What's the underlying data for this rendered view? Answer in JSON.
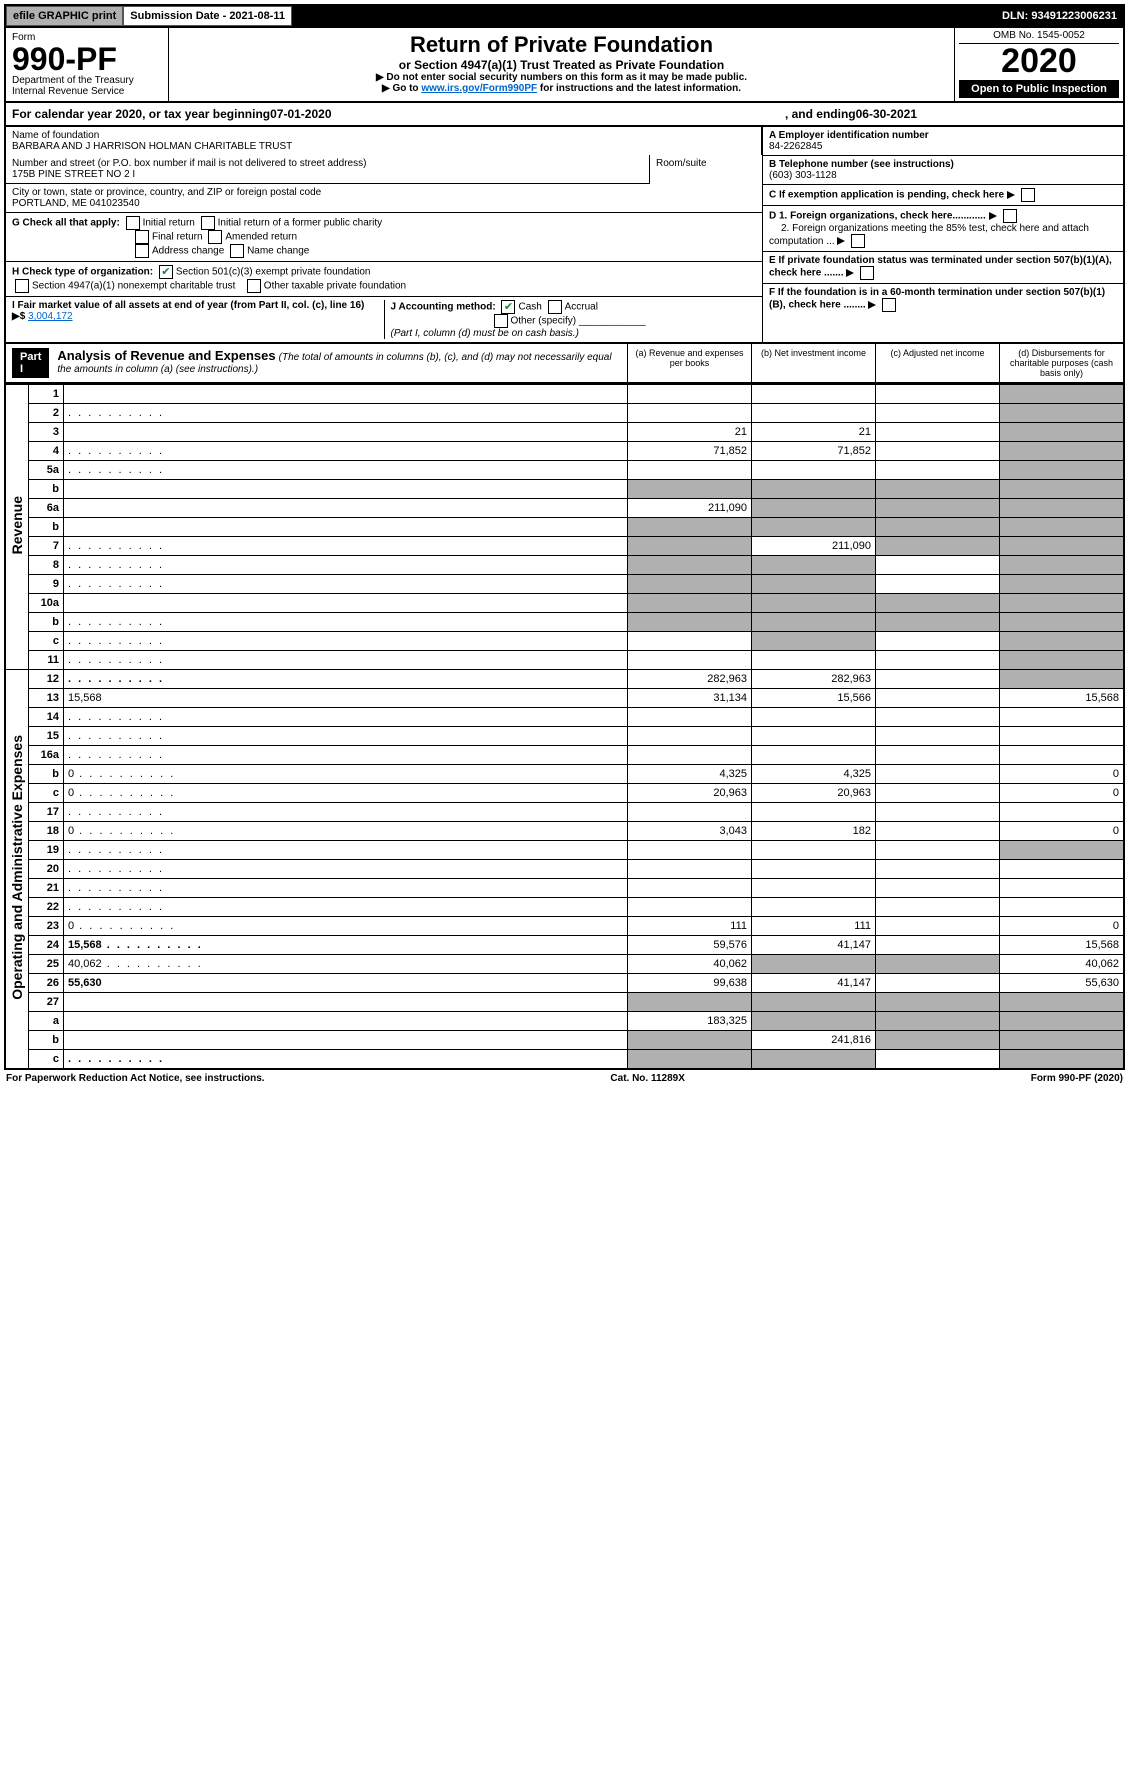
{
  "topbar": {
    "efile": "efile GRAPHIC print",
    "submission": "Submission Date - 2021-08-11",
    "dln": "DLN: 93491223006231"
  },
  "header": {
    "form_label": "Form",
    "form_number": "990-PF",
    "dept": "Department of the Treasury",
    "irs": "Internal Revenue Service",
    "title": "Return of Private Foundation",
    "subtitle": "or Section 4947(a)(1) Trust Treated as Private Foundation",
    "instr1": "▶ Do not enter social security numbers on this form as it may be made public.",
    "instr2_pre": "▶ Go to ",
    "instr2_link": "www.irs.gov/Form990PF",
    "instr2_post": " for instructions and the latest information.",
    "omb": "OMB No. 1545-0052",
    "year": "2020",
    "open": "Open to Public Inspection"
  },
  "calyear": {
    "pre": "For calendar year 2020, or tax year beginning ",
    "begin": "07-01-2020",
    "mid": " , and ending ",
    "end": "06-30-2021"
  },
  "info": {
    "name_lbl": "Name of foundation",
    "name": "BARBARA AND J HARRISON HOLMAN CHARITABLE TRUST",
    "street_lbl": "Number and street (or P.O. box number if mail is not delivered to street address)",
    "street": "175B PINE STREET NO 2 I",
    "room_lbl": "Room/suite",
    "city_lbl": "City or town, state or province, country, and ZIP or foreign postal code",
    "city": "PORTLAND, ME  041023540",
    "A_lbl": "A Employer identification number",
    "A_val": "84-2262845",
    "B_lbl": "B Telephone number (see instructions)",
    "B_val": "(603) 303-1128",
    "C_lbl": "C If exemption application is pending, check here",
    "D1_lbl": "D 1. Foreign organizations, check here............",
    "D2_lbl": "2. Foreign organizations meeting the 85% test, check here and attach computation ...",
    "E_lbl": "E If private foundation status was terminated under section 507(b)(1)(A), check here .......",
    "F_lbl": "F If the foundation is in a 60-month termination under section 507(b)(1)(B), check here ........",
    "G_lbl": "G Check all that apply:",
    "G_opts": [
      "Initial return",
      "Initial return of a former public charity",
      "Final return",
      "Amended return",
      "Address change",
      "Name change"
    ],
    "H_lbl": "H Check type of organization:",
    "H_opt1": "Section 501(c)(3) exempt private foundation",
    "H_opt2": "Section 4947(a)(1) nonexempt charitable trust",
    "H_opt3": "Other taxable private foundation",
    "I_lbl": "I Fair market value of all assets at end of year (from Part II, col. (c), line 16) ▶$ ",
    "I_val": "3,004,172",
    "J_lbl": "J Accounting method:",
    "J_cash": "Cash",
    "J_acc": "Accrual",
    "J_other": "Other (specify)",
    "J_note": "(Part I, column (d) must be on cash basis.)"
  },
  "part1": {
    "label": "Part I",
    "title": "Analysis of Revenue and Expenses",
    "desc": "(The total of amounts in columns (b), (c), and (d) may not necessarily equal the amounts in column (a) (see instructions).)",
    "cols": {
      "a": "(a)  Revenue and expenses per books",
      "b": "(b)  Net investment income",
      "c": "(c)  Adjusted net income",
      "d": "(d)  Disbursements for charitable purposes (cash basis only)"
    }
  },
  "sections": {
    "rev": "Revenue",
    "exp": "Operating and Administrative Expenses"
  },
  "rows": [
    {
      "n": "1",
      "d": "",
      "a": "",
      "b": "",
      "c": "",
      "grey": [
        "d"
      ]
    },
    {
      "n": "2",
      "d": "",
      "dotted": true,
      "a": "",
      "b": "",
      "c": "",
      "grey": [
        "d"
      ]
    },
    {
      "n": "3",
      "d": "",
      "a": "21",
      "b": "21",
      "c": "",
      "grey": [
        "d"
      ]
    },
    {
      "n": "4",
      "d": "",
      "dotted": true,
      "a": "71,852",
      "b": "71,852",
      "c": "",
      "grey": [
        "d"
      ]
    },
    {
      "n": "5a",
      "d": "",
      "dotted": true,
      "a": "",
      "b": "",
      "c": "",
      "grey": [
        "d"
      ]
    },
    {
      "n": "b",
      "d": "",
      "a": "",
      "b": "",
      "c": "",
      "grey": [
        "a",
        "b",
        "c",
        "d"
      ]
    },
    {
      "n": "6a",
      "d": "",
      "a": "211,090",
      "b": "",
      "c": "",
      "grey": [
        "b",
        "c",
        "d"
      ]
    },
    {
      "n": "b",
      "d": "",
      "a": "",
      "b": "",
      "c": "",
      "grey": [
        "a",
        "b",
        "c",
        "d"
      ]
    },
    {
      "n": "7",
      "d": "",
      "dotted": true,
      "a": "",
      "b": "211,090",
      "c": "",
      "grey": [
        "a",
        "c",
        "d"
      ]
    },
    {
      "n": "8",
      "d": "",
      "dotted": true,
      "a": "",
      "b": "",
      "c": "",
      "grey": [
        "a",
        "b",
        "d"
      ]
    },
    {
      "n": "9",
      "d": "",
      "dotted": true,
      "a": "",
      "b": "",
      "c": "",
      "grey": [
        "a",
        "b",
        "d"
      ]
    },
    {
      "n": "10a",
      "d": "",
      "a": "",
      "b": "",
      "c": "",
      "grey": [
        "a",
        "b",
        "c",
        "d"
      ]
    },
    {
      "n": "b",
      "d": "",
      "dotted": true,
      "a": "",
      "b": "",
      "c": "",
      "grey": [
        "a",
        "b",
        "c",
        "d"
      ]
    },
    {
      "n": "c",
      "d": "",
      "dotted": true,
      "a": "",
      "b": "",
      "c": "",
      "grey": [
        "b",
        "d"
      ]
    },
    {
      "n": "11",
      "d": "",
      "dotted": true,
      "a": "",
      "b": "",
      "c": "",
      "grey": [
        "d"
      ]
    },
    {
      "n": "12",
      "d": "",
      "dotted": true,
      "bold": true,
      "a": "282,963",
      "b": "282,963",
      "c": "",
      "grey": [
        "d"
      ]
    },
    {
      "n": "13",
      "d": "15,568",
      "a": "31,134",
      "b": "15,566",
      "c": ""
    },
    {
      "n": "14",
      "d": "",
      "dotted": true,
      "a": "",
      "b": "",
      "c": ""
    },
    {
      "n": "15",
      "d": "",
      "dotted": true,
      "a": "",
      "b": "",
      "c": ""
    },
    {
      "n": "16a",
      "d": "",
      "dotted": true,
      "a": "",
      "b": "",
      "c": ""
    },
    {
      "n": "b",
      "d": "0",
      "dotted": true,
      "a": "4,325",
      "b": "4,325",
      "c": ""
    },
    {
      "n": "c",
      "d": "0",
      "dotted": true,
      "a": "20,963",
      "b": "20,963",
      "c": ""
    },
    {
      "n": "17",
      "d": "",
      "dotted": true,
      "a": "",
      "b": "",
      "c": ""
    },
    {
      "n": "18",
      "d": "0",
      "dotted": true,
      "a": "3,043",
      "b": "182",
      "c": ""
    },
    {
      "n": "19",
      "d": "",
      "dotted": true,
      "a": "",
      "b": "",
      "c": "",
      "grey": [
        "d"
      ]
    },
    {
      "n": "20",
      "d": "",
      "dotted": true,
      "a": "",
      "b": "",
      "c": ""
    },
    {
      "n": "21",
      "d": "",
      "dotted": true,
      "a": "",
      "b": "",
      "c": ""
    },
    {
      "n": "22",
      "d": "",
      "dotted": true,
      "a": "",
      "b": "",
      "c": ""
    },
    {
      "n": "23",
      "d": "0",
      "dotted": true,
      "a": "111",
      "b": "111",
      "c": ""
    },
    {
      "n": "24",
      "d": "15,568",
      "dotted": true,
      "bold": true,
      "a": "59,576",
      "b": "41,147",
      "c": ""
    },
    {
      "n": "25",
      "d": "40,062",
      "dotted": true,
      "a": "40,062",
      "b": "",
      "c": "",
      "grey": [
        "b",
        "c"
      ]
    },
    {
      "n": "26",
      "d": "55,630",
      "bold": true,
      "a": "99,638",
      "b": "41,147",
      "c": ""
    },
    {
      "n": "27",
      "d": "",
      "a": "",
      "b": "",
      "c": "",
      "grey": [
        "a",
        "b",
        "c",
        "d"
      ]
    },
    {
      "n": "a",
      "d": "",
      "bold": true,
      "a": "183,325",
      "b": "",
      "c": "",
      "grey": [
        "b",
        "c",
        "d"
      ]
    },
    {
      "n": "b",
      "d": "",
      "bold": true,
      "a": "",
      "b": "241,816",
      "c": "",
      "grey": [
        "a",
        "c",
        "d"
      ]
    },
    {
      "n": "c",
      "d": "",
      "bold": true,
      "dotted": true,
      "a": "",
      "b": "",
      "c": "",
      "grey": [
        "a",
        "b",
        "d"
      ]
    }
  ],
  "footer": {
    "left": "For Paperwork Reduction Act Notice, see instructions.",
    "mid": "Cat. No. 11289X",
    "right": "Form 990-PF (2020)"
  }
}
